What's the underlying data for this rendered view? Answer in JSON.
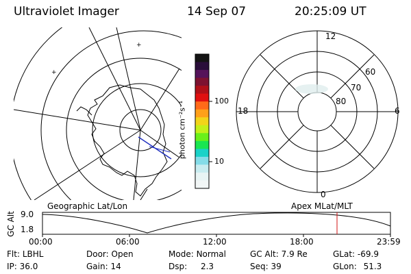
{
  "header": {
    "instrument": "Ultraviolet Imager",
    "date": "14 Sep 07",
    "time": "20:25:09 UT"
  },
  "colorbar": {
    "unit_label": "photon cm⁻²s⁻¹",
    "ticks": [
      "100",
      "10"
    ],
    "colors": [
      "#141414",
      "#2a0e3a",
      "#55135a",
      "#7d1230",
      "#b01018",
      "#e01010",
      "#ff6a1a",
      "#ffa01a",
      "#f2d41a",
      "#c4f01a",
      "#6af01a",
      "#1ae650",
      "#1ad2c8",
      "#84dce8",
      "#c8ecf0",
      "#e8f4f4",
      "#f2f6f6"
    ]
  },
  "left_map": {
    "caption": "Geographic Lat/Lon"
  },
  "right_map": {
    "caption": "Apex MLat/MLT",
    "mlt_labels": {
      "top": "12",
      "right": "6",
      "bottom": "0",
      "left": "18"
    },
    "lat_labels": [
      "60",
      "70",
      "80"
    ]
  },
  "altitude_plot": {
    "ylabel": "GC Alt",
    "y_ticks": [
      "9.0",
      "1.8"
    ],
    "x_ticks": [
      "00:00",
      "06:00",
      "12:00",
      "18:00",
      "23:59"
    ],
    "marker_time_label": "20:25:09"
  },
  "status": {
    "row1": [
      {
        "key": "Flt:",
        "value": "LBHL"
      },
      {
        "key": "Door:",
        "value": "Open"
      },
      {
        "key": "Mode:",
        "value": "Normal"
      },
      {
        "key": "GC Alt:",
        "value": "7.9 Re"
      },
      {
        "key": "GLat:",
        "value": "-69.9"
      }
    ],
    "row2": [
      {
        "key": "IP:",
        "value": "36.0"
      },
      {
        "key": "Gain:",
        "value": "14"
      },
      {
        "key": "Dsp:",
        "value": "2.3"
      },
      {
        "key": "Seq:",
        "value": "39"
      },
      {
        "key": "GLon:",
        "value": "51.3"
      }
    ]
  },
  "accent_colors": {
    "marker": "#d01010",
    "track": "#2030c0"
  }
}
